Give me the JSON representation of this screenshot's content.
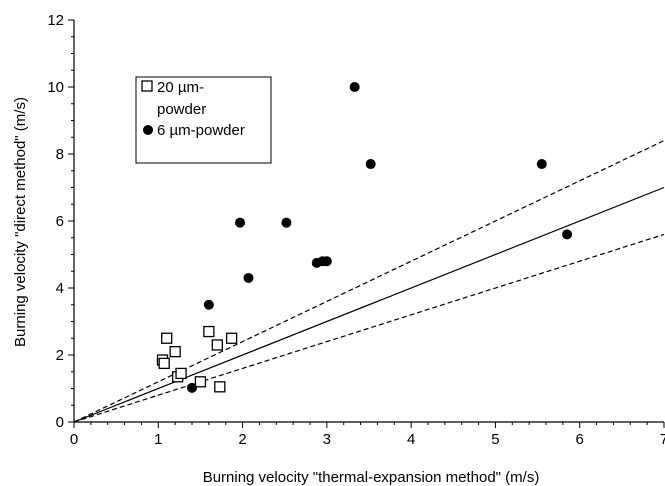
{
  "chart_data": {
    "type": "scatter",
    "title": "",
    "xlabel": "Burning velocity \"thermal-expansion method\" (m/s)",
    "ylabel": "Burning velocity \"direct method\" (m/s)",
    "xlim": [
      0,
      7
    ],
    "ylim": [
      0,
      12
    ],
    "xticks": [
      "0",
      "1",
      "2",
      "3",
      "4",
      "5",
      "6",
      "7"
    ],
    "yticks": [
      "0",
      "2",
      "4",
      "6",
      "8",
      "10",
      "12"
    ],
    "grid": false,
    "legend_position": "upper-left",
    "series": [
      {
        "name": "20 µm-powder",
        "marker": "open-square",
        "points": [
          [
            1.05,
            1.85
          ],
          [
            1.07,
            1.75
          ],
          [
            1.1,
            2.5
          ],
          [
            1.2,
            2.1
          ],
          [
            1.23,
            1.35
          ],
          [
            1.27,
            1.45
          ],
          [
            1.5,
            1.2
          ],
          [
            1.6,
            2.7
          ],
          [
            1.7,
            2.3
          ],
          [
            1.73,
            1.05
          ],
          [
            1.87,
            2.5
          ]
        ]
      },
      {
        "name": "6 µm-powder",
        "marker": "filled-circle",
        "points": [
          [
            1.4,
            1.02
          ],
          [
            1.6,
            3.5
          ],
          [
            1.97,
            5.95
          ],
          [
            2.07,
            4.3
          ],
          [
            2.52,
            5.95
          ],
          [
            2.88,
            4.75
          ],
          [
            2.95,
            4.8
          ],
          [
            3.0,
            4.8
          ],
          [
            3.33,
            10.0
          ],
          [
            3.52,
            7.7
          ],
          [
            5.55,
            7.7
          ],
          [
            5.85,
            5.6
          ]
        ]
      }
    ],
    "reference_lines": [
      {
        "style": "solid",
        "slope": 1.0
      },
      {
        "style": "dashed",
        "slope": 1.2
      },
      {
        "style": "dashed",
        "slope": 0.8
      }
    ]
  },
  "legend": {
    "entry_1": "20 µm-",
    "entry_1_cont": "powder",
    "entry_2": "6 µm-powder"
  },
  "colors": {
    "axis": "#000000",
    "marker_fill": "#000000",
    "open_marker_fill": "#ffffff"
  }
}
